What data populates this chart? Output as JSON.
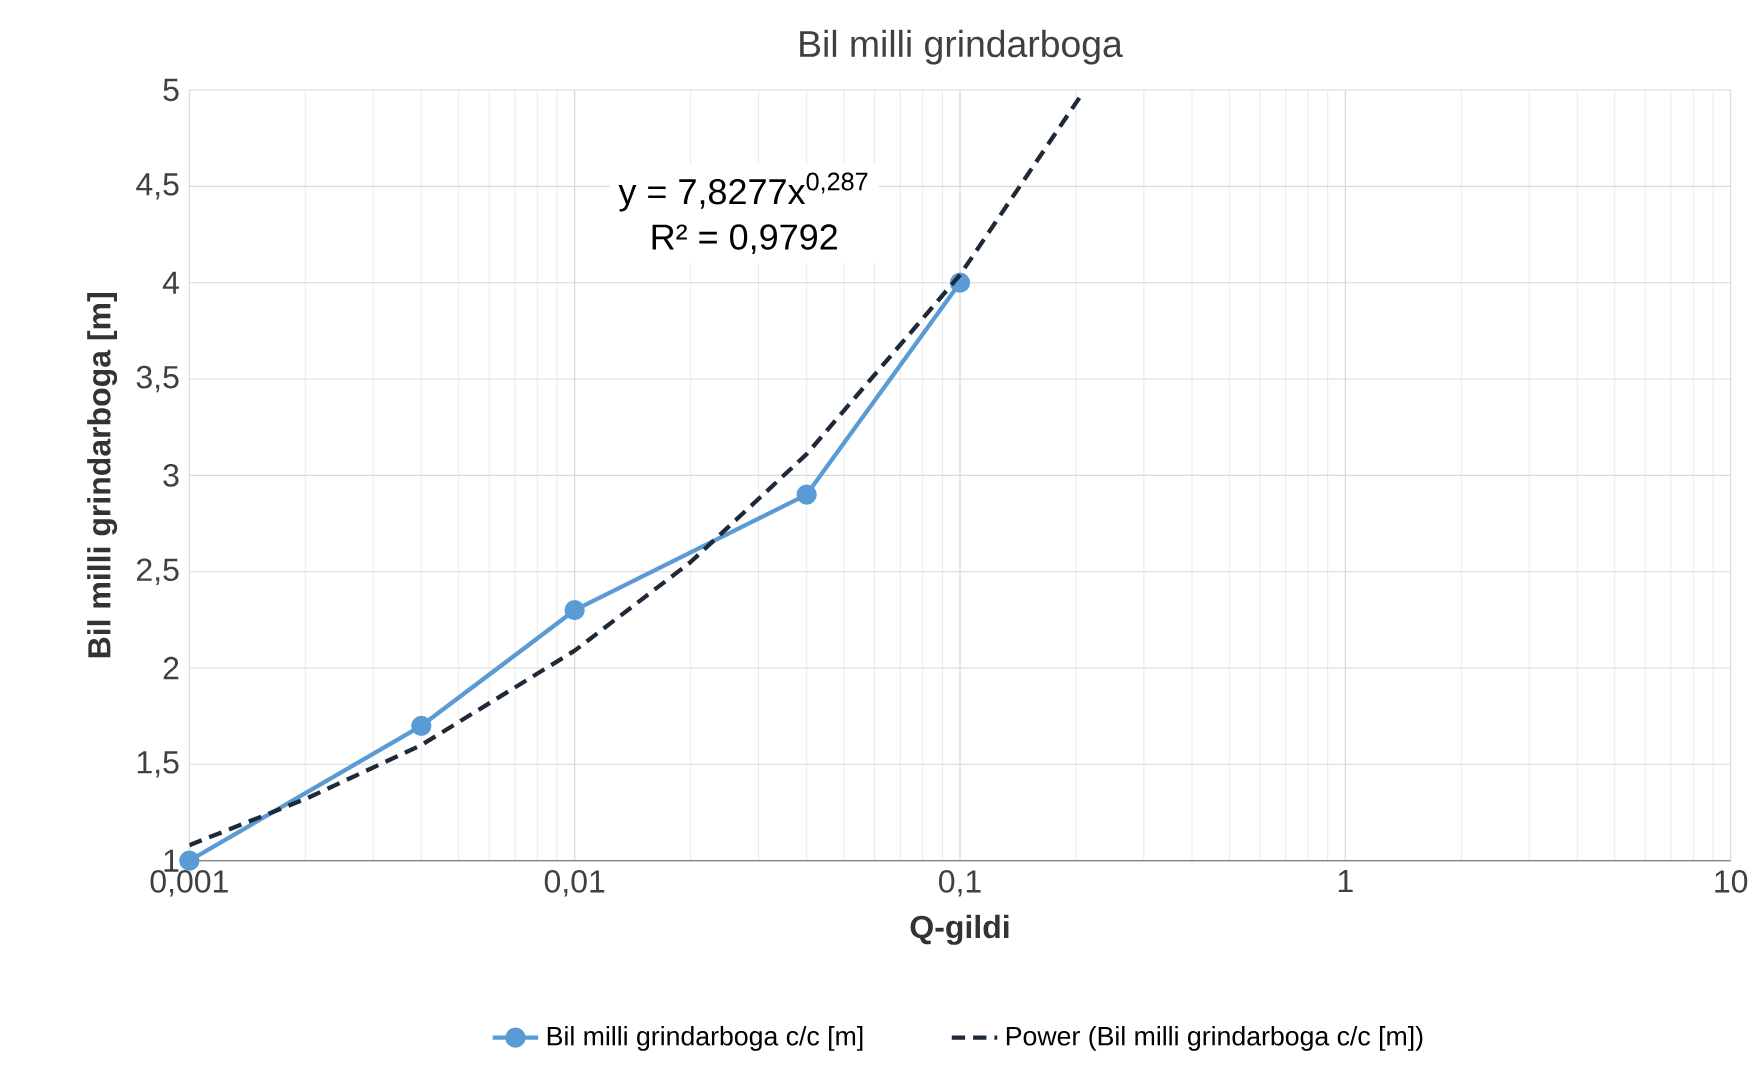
{
  "chart_data": {
    "type": "line",
    "title": "Bil milli grindarboga",
    "xlabel": "Q-gildi",
    "ylabel": "Bil milli grindarboga [m]",
    "log": "x",
    "grid": true,
    "legend": "bottom",
    "xlim": [
      0.001,
      10
    ],
    "xticks": [
      {
        "value": 0.001,
        "label": "0,001"
      },
      {
        "value": 0.01,
        "label": "0,01"
      },
      {
        "value": 0.1,
        "label": "0,1"
      },
      {
        "value": 1,
        "label": "1"
      },
      {
        "value": 10,
        "label": "10"
      }
    ],
    "ylim": [
      1,
      5
    ],
    "yticks": [
      1,
      {
        "value": 1.5,
        "label": "1,5"
      },
      2,
      {
        "value": 2.5,
        "label": "2,5"
      },
      3,
      {
        "value": 3.5,
        "label": "3,5"
      },
      4,
      {
        "value": 4.5,
        "label": "4,5"
      },
      5
    ],
    "series": [
      {
        "name": "Bil milli grindarboga c/c [m]",
        "color": "#5b9bd5",
        "marker": "circle",
        "line_style": "solid",
        "x": [
          0.001,
          0.004,
          0.01,
          0.04,
          0.1
        ],
        "values": [
          1,
          1.7,
          2.3,
          2.9,
          4
        ]
      },
      {
        "name": "Power (Bil milli grindarboga c/c [m])",
        "color": "#1f2a38",
        "marker": "none",
        "line_style": "dashed",
        "x": [
          0.001,
          0.002,
          0.004,
          0.01,
          0.02,
          0.04,
          0.1,
          0.209
        ],
        "values": [
          1.08,
          1.32,
          1.6,
          2.09,
          2.55,
          3.11,
          4.04,
          4.99
        ]
      }
    ],
    "annotations": [
      "y = 7,8277x$^{0,287}$",
      "R² = 0,9792"
    ]
  }
}
